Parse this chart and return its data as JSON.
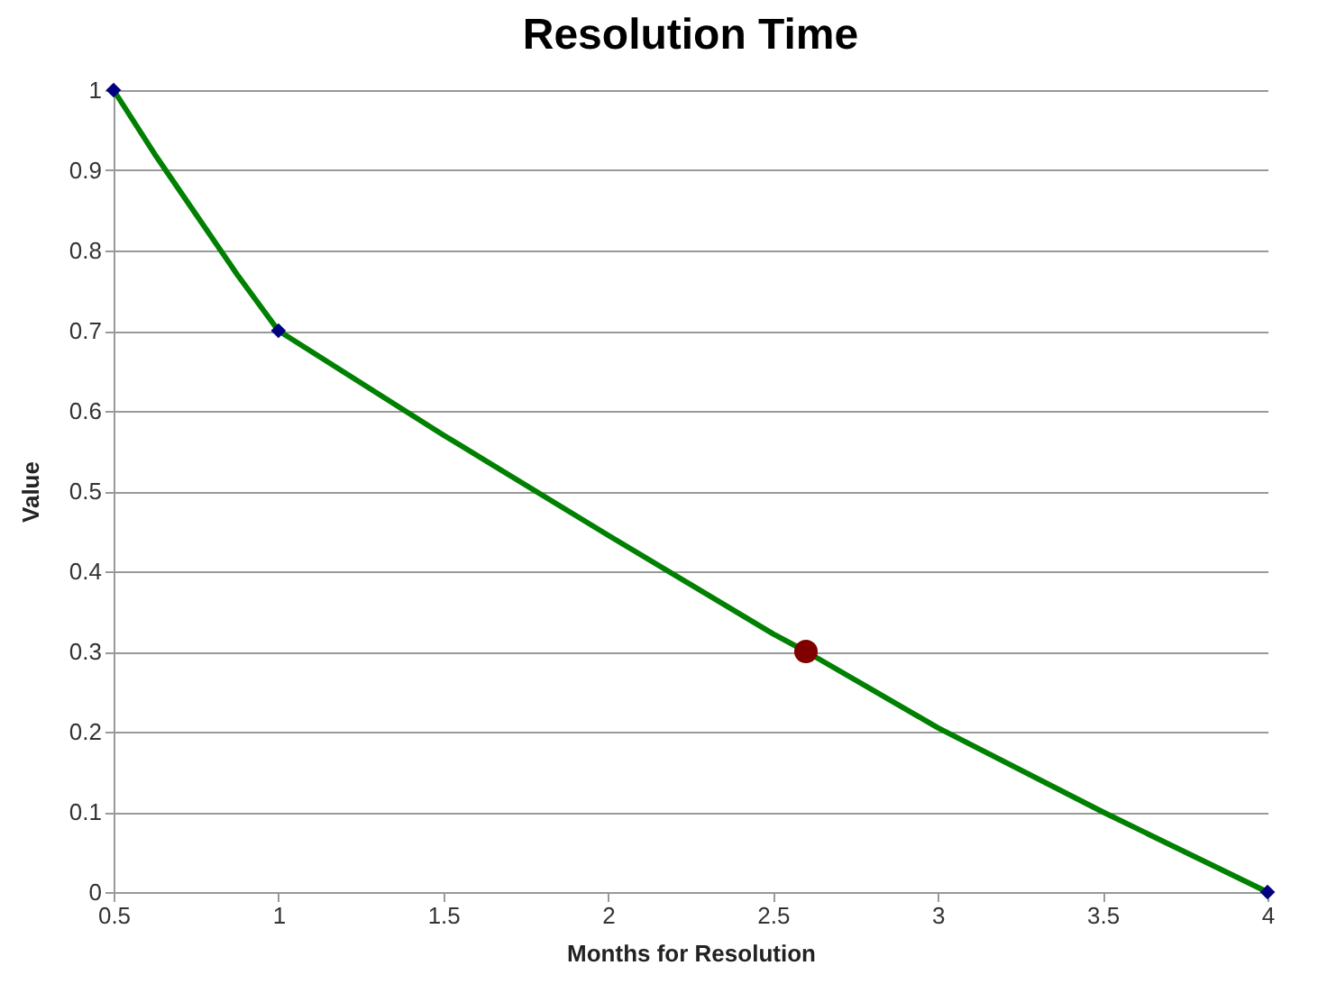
{
  "chart_data": {
    "type": "line",
    "title": "Resolution Time",
    "xlabel": "Months for Resolution",
    "ylabel": "Value",
    "series": [
      {
        "color": "#008000",
        "marker": "none",
        "x": [
          0.5,
          0.625,
          0.75,
          0.875,
          1,
          1.5,
          2,
          2.5,
          2.6,
          3,
          3.5,
          4
        ],
        "values": [
          1,
          0.92,
          0.845,
          0.77,
          0.7,
          0.57,
          0.445,
          0.322,
          0.3,
          0.205,
          0.1,
          0
        ]
      },
      {
        "type": "scatter",
        "color": "#000080",
        "marker": "diamond",
        "x": [
          0.5,
          1,
          4
        ],
        "values": [
          1,
          0.7,
          0
        ]
      },
      {
        "type": "scatter",
        "color": "#800000",
        "marker": "circle",
        "x": [
          2.6
        ],
        "values": [
          0.3
        ]
      }
    ],
    "xlim": [
      0.5,
      4
    ],
    "ylim": [
      0,
      1
    ],
    "xticks": [
      0.5,
      1,
      1.5,
      2,
      2.5,
      3,
      3.5,
      4
    ],
    "yticks": [
      0,
      0.1,
      0.2,
      0.3,
      0.4,
      0.5,
      0.6,
      0.7,
      0.8,
      0.9,
      1
    ],
    "grid": "y"
  }
}
